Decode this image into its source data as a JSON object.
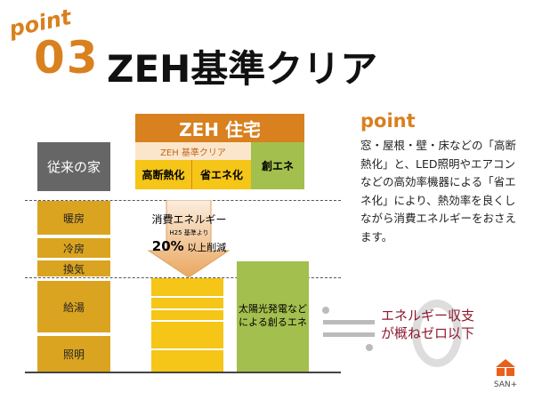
{
  "header": {
    "point_label": "point",
    "number": "03",
    "title": "ZEH基準クリア"
  },
  "zeh": {
    "title": "ZEH 住宅",
    "band": "ZEH 基準クリア",
    "cells": [
      "高断熱化",
      "省エネ化"
    ],
    "create": "創エネ"
  },
  "conventional": {
    "title": "従来の家",
    "items": [
      "暖房",
      "冷房",
      "換気",
      "給湯",
      "照明"
    ]
  },
  "arrow": {
    "line1": "消費エネルギー",
    "line2": "H25 基準より",
    "line3_pct": "20%",
    "line3_rest": " 以上削減"
  },
  "solar": "太陽光発電などによる創るエネ",
  "result": {
    "line1": "エネルギー収支",
    "line2": "が概ねゼロ以下"
  },
  "point": {
    "label": "point",
    "text": "窓・屋根・壁・床などの「高断熱化」と、LED照明やエアコンなどの高効率機器による「省エネ化」により、熱効率を良くしながら消費エネルギーをおさえます。"
  },
  "logo": "SAN+",
  "colors": {
    "orange": "#d9801f",
    "yellow": "#f5c518",
    "mustard": "#dba420",
    "green": "#a3bf4e",
    "gray": "#666666",
    "red": "#8b1a2e"
  }
}
